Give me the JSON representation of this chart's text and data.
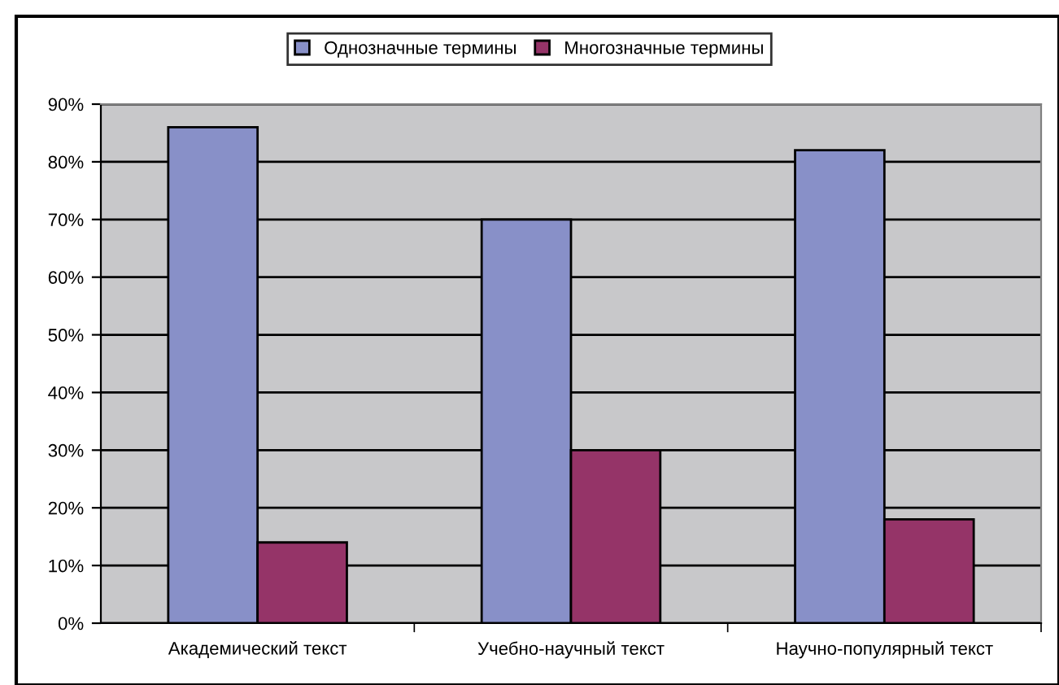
{
  "chart_data": {
    "type": "bar",
    "categories": [
      "Академический текст",
      "Учебно-научный текст",
      "Научно-популярный текст"
    ],
    "series": [
      {
        "name": "Однозначные термины",
        "color": "#8890c8",
        "values": [
          86,
          70,
          82
        ]
      },
      {
        "name": "Многозначные термины",
        "color": "#953468",
        "values": [
          14,
          30,
          18
        ]
      }
    ],
    "ylim": [
      0,
      90
    ],
    "yticks": [
      {
        "value": 0,
        "label": "0%"
      },
      {
        "value": 10,
        "label": "10%"
      },
      {
        "value": 20,
        "label": "20%"
      },
      {
        "value": 30,
        "label": "30%"
      },
      {
        "value": 40,
        "label": "40%"
      },
      {
        "value": 50,
        "label": "50%"
      },
      {
        "value": 60,
        "label": "60%"
      },
      {
        "value": 70,
        "label": "70%"
      },
      {
        "value": 80,
        "label": "80%"
      },
      {
        "value": 90,
        "label": "90%"
      }
    ],
    "grid": "y",
    "legend": "top"
  }
}
